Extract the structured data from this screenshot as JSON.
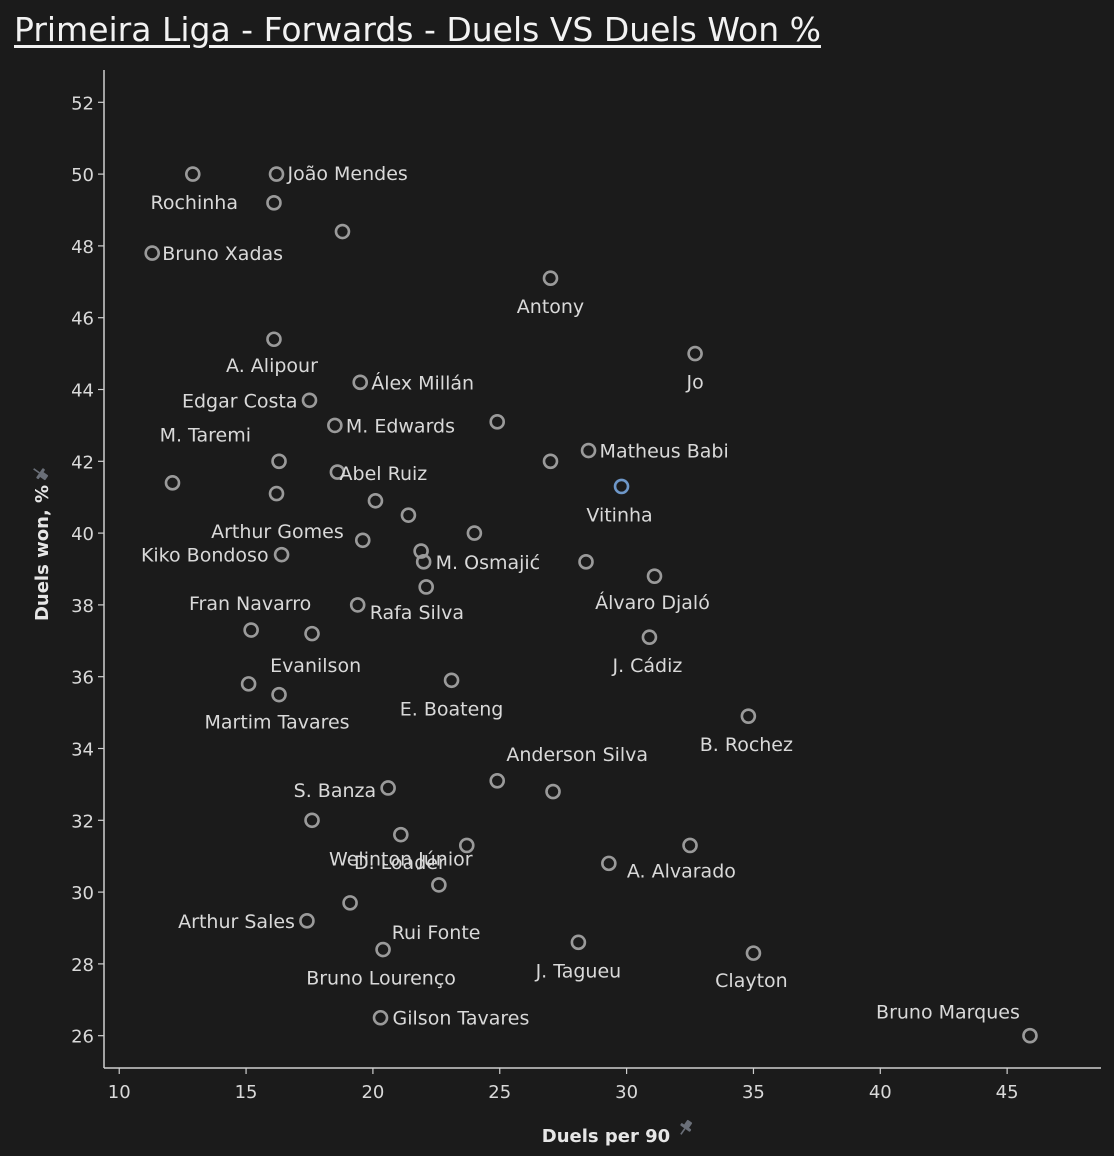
{
  "chart_data": {
    "type": "scatter",
    "title": "Primeira Liga - Forwards - Duels VS Duels Won %",
    "xlabel": "Duels per 90",
    "ylabel": "Duels won, %",
    "xlim": [
      9.4,
      48.7
    ],
    "ylim": [
      25.1,
      52.9
    ],
    "xticks": [
      10,
      15,
      20,
      25,
      30,
      35,
      40,
      45
    ],
    "yticks": [
      26,
      28,
      30,
      32,
      34,
      36,
      38,
      40,
      42,
      44,
      46,
      48,
      50,
      52
    ],
    "grid": false,
    "marker_color": "#9a9a9a",
    "highlight_color": "#6e97c8",
    "points": [
      {
        "x": 12.9,
        "y": 50.0,
        "label": ""
      },
      {
        "x": 16.2,
        "y": 50.0,
        "label": "João Mendes"
      },
      {
        "x": 16.1,
        "y": 49.2,
        "label": "Rochinha"
      },
      {
        "x": 18.8,
        "y": 48.4,
        "label": ""
      },
      {
        "x": 11.3,
        "y": 47.8,
        "label": "Bruno Xadas"
      },
      {
        "x": 27.0,
        "y": 47.1,
        "label": "Antony"
      },
      {
        "x": 16.1,
        "y": 45.4,
        "label": "A. Alipour"
      },
      {
        "x": 32.7,
        "y": 45.0,
        "label": "Jo"
      },
      {
        "x": 19.5,
        "y": 44.2,
        "label": "Álex Millán"
      },
      {
        "x": 17.5,
        "y": 43.7,
        "label": "Edgar Costa"
      },
      {
        "x": 24.9,
        "y": 43.1,
        "label": ""
      },
      {
        "x": 18.5,
        "y": 43.0,
        "label": "M. Edwards"
      },
      {
        "x": 28.5,
        "y": 42.3,
        "label": "Matheus Babi"
      },
      {
        "x": 16.3,
        "y": 42.0,
        "label": "M. Taremi"
      },
      {
        "x": 27.0,
        "y": 42.0,
        "label": ""
      },
      {
        "x": 18.6,
        "y": 41.7,
        "label": "Abel Ruiz"
      },
      {
        "x": 12.1,
        "y": 41.4,
        "label": ""
      },
      {
        "x": 29.8,
        "y": 41.3,
        "label": "Vitinha",
        "highlight": true
      },
      {
        "x": 16.2,
        "y": 41.1,
        "label": ""
      },
      {
        "x": 20.1,
        "y": 40.9,
        "label": ""
      },
      {
        "x": 21.4,
        "y": 40.5,
        "label": "Arthur Gomes"
      },
      {
        "x": 24.0,
        "y": 40.0,
        "label": ""
      },
      {
        "x": 19.6,
        "y": 39.8,
        "label": ""
      },
      {
        "x": 21.9,
        "y": 39.5,
        "label": ""
      },
      {
        "x": 16.4,
        "y": 39.4,
        "label": "Kiko Bondoso"
      },
      {
        "x": 22.0,
        "y": 39.2,
        "label": "M. Osmajić"
      },
      {
        "x": 28.4,
        "y": 39.2,
        "label": ""
      },
      {
        "x": 31.1,
        "y": 38.8,
        "label": "Álvaro Djaló"
      },
      {
        "x": 22.1,
        "y": 38.5,
        "label": ""
      },
      {
        "x": 19.4,
        "y": 38.0,
        "label": "Rafa Silva"
      },
      {
        "x": 15.2,
        "y": 37.3,
        "label": "Fran Navarro"
      },
      {
        "x": 17.6,
        "y": 37.2,
        "label": ""
      },
      {
        "x": 30.9,
        "y": 37.1,
        "label": "J. Cádiz"
      },
      {
        "x": 23.1,
        "y": 35.9,
        "label": "E. Boateng"
      },
      {
        "x": 15.1,
        "y": 35.8,
        "label": "Evanilson"
      },
      {
        "x": 16.3,
        "y": 35.5,
        "label": "Martim Tavares"
      },
      {
        "x": 34.8,
        "y": 34.9,
        "label": "B. Rochez"
      },
      {
        "x": 24.9,
        "y": 33.1,
        "label": "Anderson Silva"
      },
      {
        "x": 20.6,
        "y": 32.9,
        "label": "S. Banza"
      },
      {
        "x": 27.1,
        "y": 32.8,
        "label": ""
      },
      {
        "x": 17.6,
        "y": 32.0,
        "label": ""
      },
      {
        "x": 21.1,
        "y": 31.6,
        "label": "Welinton Júnior"
      },
      {
        "x": 23.7,
        "y": 31.3,
        "label": ""
      },
      {
        "x": 32.5,
        "y": 31.3,
        "label": ""
      },
      {
        "x": 29.3,
        "y": 30.8,
        "label": "A. Alvarado"
      },
      {
        "x": 22.6,
        "y": 30.2,
        "label": "D. Loader"
      },
      {
        "x": 19.1,
        "y": 29.7,
        "label": "Rui Fonte"
      },
      {
        "x": 17.4,
        "y": 29.2,
        "label": "Arthur Sales"
      },
      {
        "x": 28.1,
        "y": 28.6,
        "label": "J. Tagueu"
      },
      {
        "x": 20.4,
        "y": 28.4,
        "label": "Bruno Lourenço"
      },
      {
        "x": 35.0,
        "y": 28.3,
        "label": "Clayton"
      },
      {
        "x": 20.3,
        "y": 26.5,
        "label": "Gilson Tavares"
      },
      {
        "x": 45.9,
        "y": 26.0,
        "label": "Bruno Marques"
      }
    ]
  },
  "axis_colors": {
    "axis": "#cfcfcf",
    "text": "#d9d9d9",
    "background": "#1b1b1b"
  },
  "icons": {
    "axis_pin": "pin-icon"
  }
}
